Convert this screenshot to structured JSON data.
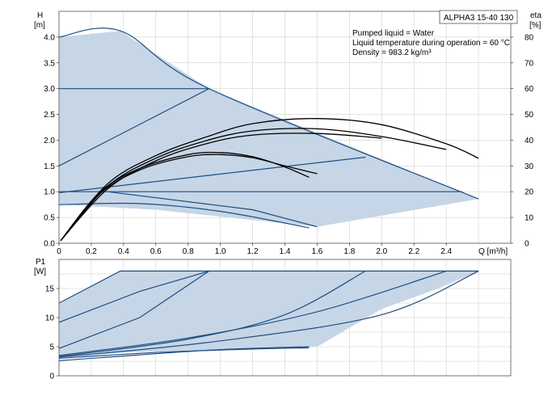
{
  "chart_data": [
    {
      "type": "line",
      "name": "H curves",
      "title": "",
      "pump_label": "ALPHA3 15-40 130",
      "annotations": [
        "Pumped liquid = Water",
        "Liquid temperature during operation = 60 °C",
        "Density = 983.2 kg/m³"
      ],
      "xlabel": "Q [m³/h]",
      "ylabel_left": "H",
      "ylabel_left_unit": "[m]",
      "ylabel_right": "eta",
      "ylabel_right_unit": "[%]",
      "xlim": [
        0,
        2.8
      ],
      "ylim_left": [
        0,
        4.5
      ],
      "ylim_right": [
        0,
        90
      ],
      "xticks": [
        "0",
        "0.2",
        "0.4",
        "0.6",
        "0.8",
        "1.0",
        "1.2",
        "1.4",
        "1.6",
        "1.8",
        "2.0",
        "2.2",
        "2.4"
      ],
      "yticks_left": [
        "0.0",
        "0.5",
        "1.0",
        "1.5",
        "2.0",
        "2.5",
        "3.0",
        "3.5",
        "4.0"
      ],
      "yticks_right": [
        "0",
        "10",
        "20",
        "30",
        "40",
        "50",
        "60",
        "70",
        "80"
      ],
      "grid": true,
      "shaded_area": {
        "color": "#c6d6e6",
        "outline": [
          [
            0,
            4.0
          ],
          [
            0.38,
            4.12
          ],
          [
            0.93,
            3.0
          ],
          [
            2.6,
            0.86
          ],
          [
            2.6,
            0.86
          ],
          [
            1.6,
            0.32
          ],
          [
            0.6,
            0.65
          ],
          [
            0,
            0.75
          ]
        ]
      },
      "series": [
        {
          "group": "performance",
          "color": "#1f4e84",
          "x": [
            0,
            0.38,
            0.93,
            2.6
          ],
          "y": [
            4.0,
            4.12,
            3.0,
            0.86
          ]
        },
        {
          "group": "performance",
          "color": "#1f4e84",
          "x": [
            0,
            0.93
          ],
          "y": [
            3.0,
            3.0
          ]
        },
        {
          "group": "performance",
          "color": "#1f4e84",
          "x": [
            0,
            0.93
          ],
          "y": [
            1.5,
            3.0
          ]
        },
        {
          "group": "performance",
          "color": "#1f4e84",
          "x": [
            0,
            1.9
          ],
          "y": [
            0.98,
            1.67
          ]
        },
        {
          "group": "performance",
          "color": "#1f4e84",
          "x": [
            0,
            2.5
          ],
          "y": [
            1.0,
            1.0
          ]
        },
        {
          "group": "performance",
          "color": "#1f4e84",
          "x": [
            0,
            0.5,
            1.0,
            1.55
          ],
          "y": [
            0.75,
            0.77,
            0.62,
            0.3
          ]
        },
        {
          "group": "performance",
          "color": "#1f4e84",
          "x": [
            0.3,
            1.2,
            1.6
          ],
          "y": [
            1.0,
            0.65,
            0.32
          ]
        },
        {
          "group": "efficiency",
          "color": "#000000",
          "x": [
            0.01,
            0.3,
            0.6,
            0.9,
            1.2,
            1.6,
            2.0,
            2.4,
            2.6
          ],
          "y": [
            0.05,
            1.15,
            1.7,
            2.05,
            2.32,
            2.42,
            2.3,
            1.93,
            1.65
          ]
        },
        {
          "group": "efficiency",
          "color": "#000000",
          "x": [
            0.01,
            0.3,
            0.6,
            0.9,
            1.2,
            1.6,
            2.0,
            2.4
          ],
          "y": [
            0.05,
            1.1,
            1.65,
            1.98,
            2.18,
            2.22,
            2.07,
            1.82
          ]
        },
        {
          "group": "efficiency",
          "color": "#000000",
          "x": [
            0.01,
            0.3,
            0.6,
            0.9,
            1.2,
            1.6,
            2.0
          ],
          "y": [
            0.05,
            1.05,
            1.6,
            1.92,
            2.1,
            2.13,
            2.04
          ]
        },
        {
          "group": "efficiency",
          "color": "#000000",
          "x": [
            0.01,
            0.25,
            0.5,
            0.8,
            1.0,
            1.2,
            1.4,
            1.55
          ],
          "y": [
            0.05,
            0.98,
            1.45,
            1.72,
            1.76,
            1.68,
            1.48,
            1.28
          ]
        },
        {
          "group": "efficiency",
          "color": "#000000",
          "x": [
            0.01,
            0.25,
            0.5,
            0.8,
            1.0,
            1.2,
            1.4,
            1.6
          ],
          "y": [
            0.05,
            0.95,
            1.42,
            1.68,
            1.72,
            1.66,
            1.5,
            1.35
          ]
        }
      ]
    },
    {
      "type": "line",
      "name": "P1 curves",
      "ylabel": "P1",
      "ylabel_unit": "[W]",
      "xlim": [
        0,
        2.8
      ],
      "ylim": [
        0,
        20
      ],
      "yticks": [
        "0",
        "5",
        "10",
        "15"
      ],
      "grid": true,
      "shaded_area": {
        "color": "#c6d6e6",
        "outline": [
          [
            0,
            12.5
          ],
          [
            0.38,
            18.0
          ],
          [
            2.6,
            18.0
          ],
          [
            2.6,
            18.0
          ],
          [
            2.35,
            15.0
          ],
          [
            2.0,
            11.5
          ],
          [
            1.6,
            5.0
          ],
          [
            0.4,
            4.0
          ],
          [
            0,
            3.0
          ]
        ]
      },
      "series": [
        {
          "color": "#1f4e84",
          "x": [
            0,
            0.38,
            2.6
          ],
          "y": [
            12.5,
            18.0,
            18.0
          ]
        },
        {
          "color": "#1f4e84",
          "x": [
            0,
            0.5,
            0.93
          ],
          "y": [
            9.2,
            14.5,
            18.0
          ]
        },
        {
          "color": "#1f4e84",
          "x": [
            0,
            0.5,
            0.93
          ],
          "y": [
            4.7,
            10.0,
            18.0
          ]
        },
        {
          "color": "#1f4e84",
          "x": [
            0,
            0.8,
            1.6,
            2.4
          ],
          "y": [
            3.5,
            6.5,
            11.0,
            18.0
          ]
        },
        {
          "color": "#1f4e84",
          "x": [
            0,
            0.8,
            1.4,
            1.9
          ],
          "y": [
            3.3,
            6.3,
            10.5,
            18.0
          ]
        },
        {
          "color": "#1f4e84",
          "x": [
            0,
            0.6,
            1.2,
            1.55
          ],
          "y": [
            3.0,
            4.0,
            4.6,
            4.8
          ]
        },
        {
          "color": "#1f4e84",
          "x": [
            0,
            0.5,
            1.0,
            1.55
          ],
          "y": [
            2.6,
            3.6,
            4.5,
            5.0
          ]
        },
        {
          "color": "#1f4e84",
          "x": [
            0,
            1.0,
            2.0,
            2.6
          ],
          "y": [
            3.2,
            6.0,
            10.5,
            18.0
          ]
        }
      ]
    }
  ]
}
